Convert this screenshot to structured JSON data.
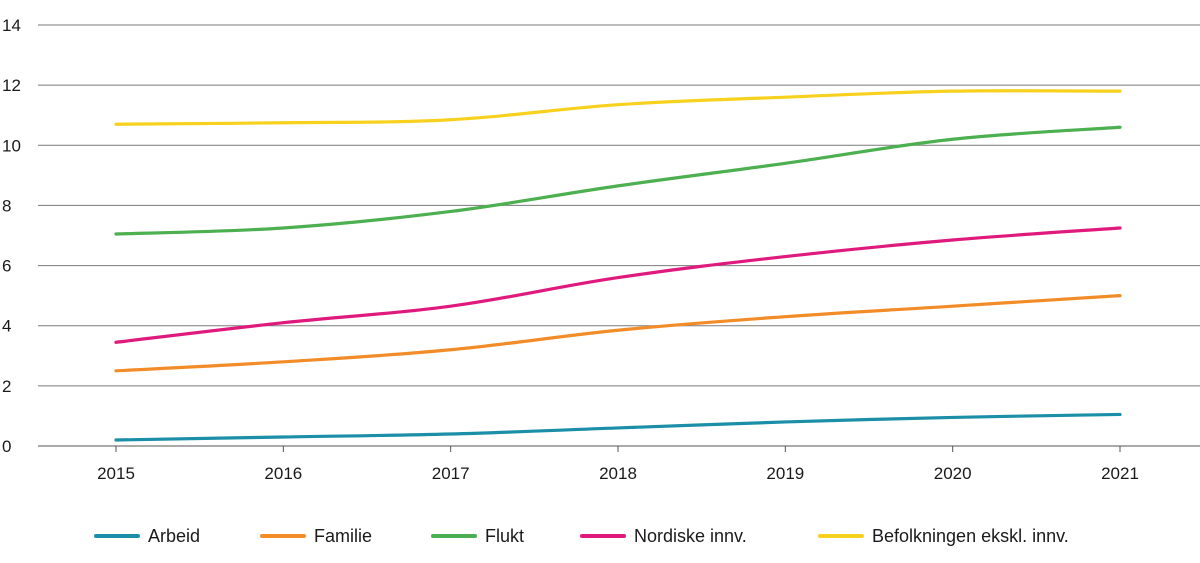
{
  "chart_data": {
    "type": "line",
    "title": "",
    "xlabel": "",
    "ylabel": "",
    "x": [
      "2015",
      "2016",
      "2017",
      "2018",
      "2019",
      "2020",
      "2021"
    ],
    "ylim": [
      0,
      14
    ],
    "yticks": [
      "0",
      "2",
      "4",
      "6",
      "8",
      "10",
      "12",
      "14"
    ],
    "grid": true,
    "legend_position": "bottom",
    "series": [
      {
        "name": "Arbeid",
        "color": "#1b8ea8",
        "values": [
          0.2,
          0.3,
          0.4,
          0.6,
          0.8,
          0.95,
          1.05
        ]
      },
      {
        "name": "Familie",
        "color": "#f28c28",
        "values": [
          2.5,
          2.8,
          3.2,
          3.85,
          4.3,
          4.65,
          5.0
        ]
      },
      {
        "name": "Flukt",
        "color": "#4caf50",
        "values": [
          7.05,
          7.25,
          7.8,
          8.65,
          9.4,
          10.2,
          10.6
        ]
      },
      {
        "name": "Nordiske innv.",
        "color": "#e0197d",
        "values": [
          3.45,
          4.1,
          4.65,
          5.6,
          6.3,
          6.85,
          7.25
        ]
      },
      {
        "name": "Befolkningen ekskl. innv.",
        "color": "#f7d11e",
        "values": [
          10.7,
          10.75,
          10.85,
          11.35,
          11.6,
          11.8,
          11.8
        ]
      }
    ]
  }
}
